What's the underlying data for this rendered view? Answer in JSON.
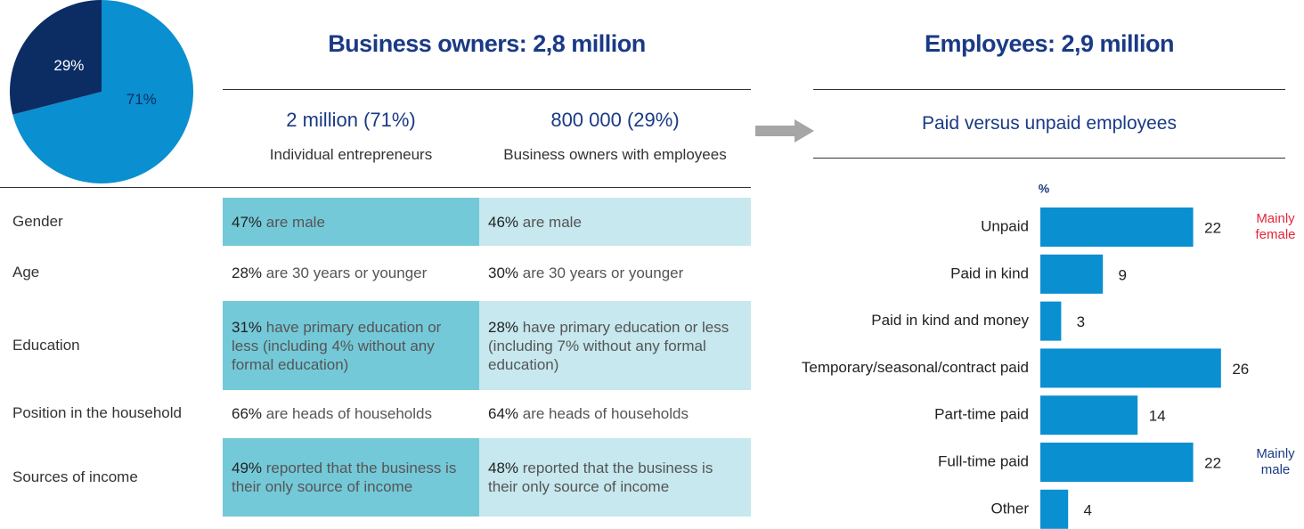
{
  "chart_data": [
    {
      "type": "pie",
      "values": [
        71,
        29
      ],
      "value_labels": [
        "71%",
        "29%"
      ],
      "colors": [
        "#0a8fd0",
        "#0b2d63"
      ]
    },
    {
      "type": "hbar",
      "title": "Paid versus unpaid employees",
      "xlabel": "%",
      "categories": [
        "Unpaid",
        "Paid in kind",
        "Paid in kind and money",
        "Temporary/seasonal/contract paid",
        "Part-time paid",
        "Full-time paid",
        "Other"
      ],
      "values": [
        22,
        9,
        3,
        26,
        14,
        22,
        4
      ],
      "color": "#0a8fd0",
      "annotations": [
        {
          "text": "Mainly female",
          "category": "Unpaid",
          "color": "#e3263a"
        },
        {
          "text": "Mainly male",
          "category": "Full-time paid",
          "color": "#1a3a85"
        }
      ]
    }
  ],
  "business": {
    "title": "Business owners: 2,8 million",
    "columns": [
      {
        "heading": "2 million (71%)",
        "subheading": "Individual entrepreneurs"
      },
      {
        "heading": "800 000 (29%)",
        "subheading": "Business owners with employees"
      }
    ]
  },
  "employees": {
    "title": "Employees: 2,9 million"
  },
  "table": {
    "rows": [
      {
        "label": "Gender",
        "cells": [
          {
            "highlight": "47%",
            "text": "are male"
          },
          {
            "highlight": "46%",
            "text": "are male"
          }
        ]
      },
      {
        "label": "Age",
        "cells": [
          {
            "highlight": "28%",
            "text": "are 30 years or younger"
          },
          {
            "highlight": "30%",
            "text": "are 30 years or younger"
          }
        ]
      },
      {
        "label": "Education",
        "cells": [
          {
            "highlight": "31%",
            "text": "have primary education or less (including 4% without any formal education)"
          },
          {
            "highlight": "28%",
            "text": "have primary education or less (including 7% without any formal education)"
          }
        ]
      },
      {
        "label": "Position in the household",
        "cells": [
          {
            "highlight": "66%",
            "text": "are heads of households"
          },
          {
            "highlight": "64%",
            "text": "are heads of households"
          }
        ]
      },
      {
        "label": "Sources of income",
        "cells": [
          {
            "highlight": "49%",
            "text": "reported that the business is their only source of income"
          },
          {
            "highlight": "48%",
            "text": "reported that the business is their only source of income"
          }
        ]
      }
    ]
  }
}
